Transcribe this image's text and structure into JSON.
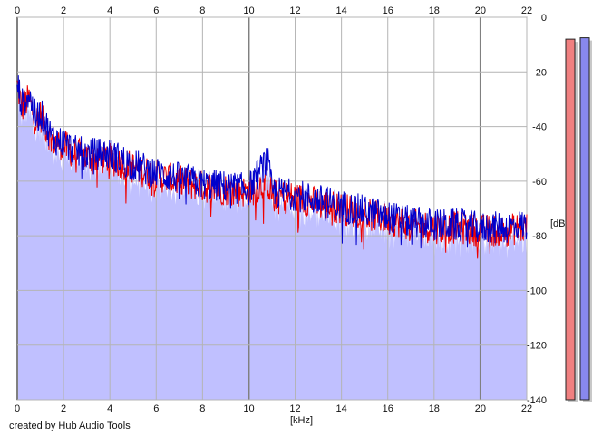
{
  "credit": "created by Hub Audio Tools",
  "colors": {
    "background": "#ffffff",
    "plot_bg": "#ffffff",
    "fill": "#c0c0ff",
    "grid": "#b4b4b4",
    "grid_major": "#808080",
    "series_red": "#ee0000",
    "series_blue": "#0000cc",
    "meter_left": "#f08080",
    "meter_right": "#8888ee"
  },
  "chart_data": {
    "type": "line",
    "xlabel": "[kHz]",
    "ylabel": "[dB]",
    "xlim": [
      0,
      22
    ],
    "ylim": [
      -140,
      0
    ],
    "x_ticks": [
      "0",
      "2",
      "4",
      "6",
      "8",
      "10",
      "12",
      "14",
      "16",
      "18",
      "20",
      "22"
    ],
    "y_ticks": [
      "0",
      "-20",
      "-40",
      "-60",
      "-80",
      "-100",
      "-120",
      "-140"
    ],
    "grid": true,
    "major_x_ticks": [
      0,
      10,
      20
    ],
    "series": [
      {
        "color_key": "series_red",
        "x": [
          0,
          0.2,
          0.5,
          0.8,
          1,
          1.5,
          2,
          2.5,
          3,
          4,
          5,
          6,
          7,
          8,
          9,
          10,
          10.8,
          11,
          12,
          13,
          14,
          15,
          16,
          17,
          18,
          19,
          20,
          21,
          22
        ],
        "y": [
          -25,
          -33,
          -30,
          -38,
          -36,
          -45,
          -47,
          -50,
          -51,
          -52,
          -55,
          -58,
          -60,
          -62,
          -63,
          -64,
          -60,
          -65,
          -66,
          -68,
          -70,
          -72,
          -74,
          -76,
          -77,
          -77,
          -78,
          -78,
          -77
        ]
      },
      {
        "color_key": "series_blue",
        "x": [
          0,
          0.2,
          0.5,
          0.8,
          1,
          1.5,
          2,
          2.5,
          3,
          4,
          5,
          6,
          7,
          8,
          9,
          10,
          10.8,
          11,
          12,
          13,
          14,
          15,
          16,
          17,
          18,
          19,
          20,
          21,
          22
        ],
        "y": [
          -24,
          -32,
          -28,
          -37,
          -35,
          -44,
          -46,
          -49,
          -50,
          -50,
          -54,
          -57,
          -59,
          -61,
          -62,
          -63,
          -52,
          -64,
          -65,
          -67,
          -69,
          -71,
          -73,
          -75,
          -76,
          -76,
          -77,
          -77,
          -76
        ]
      }
    ],
    "meters": {
      "range": [
        -140,
        0
      ],
      "left": -8,
      "right": -7.5
    }
  }
}
